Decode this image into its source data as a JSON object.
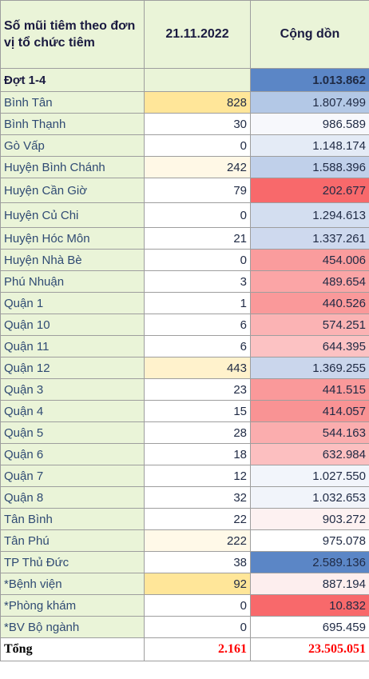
{
  "header": {
    "col1": "Số mũi tiêm theo đơn vị tổ chức tiêm",
    "col2": "21.11.2022",
    "col3": "Cộng dồn"
  },
  "group": {
    "label": "Đợt 1-4",
    "day": "",
    "total": "1.013.862",
    "day_bg": "#eaf4d8",
    "total_bg": "#5b86c6"
  },
  "rows": [
    {
      "name": "Bình Tân",
      "day": "828",
      "total": "1.807.499",
      "day_bg": "#ffe699",
      "total_bg": "#b3c8e6"
    },
    {
      "name": "Bình Thạnh",
      "day": "30",
      "total": "986.589",
      "day_bg": "#ffffff",
      "total_bg": "#f7f8fc"
    },
    {
      "name": "Gò Vấp",
      "day": "0",
      "total": "1.148.174",
      "day_bg": "#ffffff",
      "total_bg": "#e4ebf6"
    },
    {
      "name": "Huyện Bình Chánh",
      "day": "242",
      "total": "1.588.396",
      "day_bg": "#fff8e6",
      "total_bg": "#c0d0ea"
    },
    {
      "name": "Huyện Cần Giờ",
      "day": "79",
      "total": "202.677",
      "day_bg": "#ffffff",
      "total_bg": "#f8696b",
      "tall": true
    },
    {
      "name": "Huyện Củ Chi",
      "day": "0",
      "total": "1.294.613",
      "day_bg": "#ffffff",
      "total_bg": "#d3def0",
      "tall": true
    },
    {
      "name": "Huyện Hóc Môn",
      "day": "21",
      "total": "1.337.261",
      "day_bg": "#ffffff",
      "total_bg": "#ced9ee"
    },
    {
      "name": "Huyện Nhà Bè",
      "day": "0",
      "total": "454.006",
      "day_bg": "#ffffff",
      "total_bg": "#fa9c9d"
    },
    {
      "name": "Phú Nhuận",
      "day": "3",
      "total": "489.654",
      "day_bg": "#ffffff",
      "total_bg": "#fba5a6"
    },
    {
      "name": "Quận 1",
      "day": "1",
      "total": "440.526",
      "day_bg": "#ffffff",
      "total_bg": "#fa999a"
    },
    {
      "name": "Quận 10",
      "day": "6",
      "total": "574.251",
      "day_bg": "#ffffff",
      "total_bg": "#fbb3b4"
    },
    {
      "name": "Quận 11",
      "day": "6",
      "total": "644.395",
      "day_bg": "#ffffff",
      "total_bg": "#fcc2c3"
    },
    {
      "name": "Quận 12",
      "day": "443",
      "total": "1.369.255",
      "day_bg": "#fff2cc",
      "total_bg": "#cad6ec"
    },
    {
      "name": "Quận 3",
      "day": "23",
      "total": "441.515",
      "day_bg": "#ffffff",
      "total_bg": "#fa999a"
    },
    {
      "name": "Quận 4",
      "day": "15",
      "total": "414.057",
      "day_bg": "#ffffff",
      "total_bg": "#f99394"
    },
    {
      "name": "Quận 5",
      "day": "28",
      "total": "544.163",
      "day_bg": "#ffffff",
      "total_bg": "#fbadae"
    },
    {
      "name": "Quận 6",
      "day": "18",
      "total": "632.984",
      "day_bg": "#ffffff",
      "total_bg": "#fcbfc0"
    },
    {
      "name": "Quận 7",
      "day": "12",
      "total": "1.027.550",
      "day_bg": "#ffffff",
      "total_bg": "#f2f5fb"
    },
    {
      "name": "Quận 8",
      "day": "32",
      "total": "1.032.653",
      "day_bg": "#ffffff",
      "total_bg": "#f1f4fa"
    },
    {
      "name": "Tân Bình",
      "day": "22",
      "total": "903.272",
      "day_bg": "#ffffff",
      "total_bg": "#fdf1f1"
    },
    {
      "name": "Tân Phú",
      "day": "222",
      "total": "975.078",
      "day_bg": "#fff9e8",
      "total_bg": "#ffffff"
    },
    {
      "name": "TP Thủ Đức",
      "day": "38",
      "total": "2.589.136",
      "day_bg": "#ffffff",
      "total_bg": "#5b86c6"
    },
    {
      "name": "*Bệnh viện",
      "day": "92",
      "total": "887.194",
      "day_bg": "#ffe699",
      "total_bg": "#fdeeee"
    },
    {
      "name": "*Phòng khám",
      "day": "0",
      "total": "10.832",
      "day_bg": "#ffffff",
      "total_bg": "#f8696b"
    },
    {
      "name": "*BV Bộ ngành",
      "day": "0",
      "total": "695.459",
      "day_bg": "#ffffff",
      "total_bg": "#ffffff"
    }
  ],
  "total": {
    "label": "Tổng",
    "day": "2.161",
    "total": "23.505.051"
  }
}
